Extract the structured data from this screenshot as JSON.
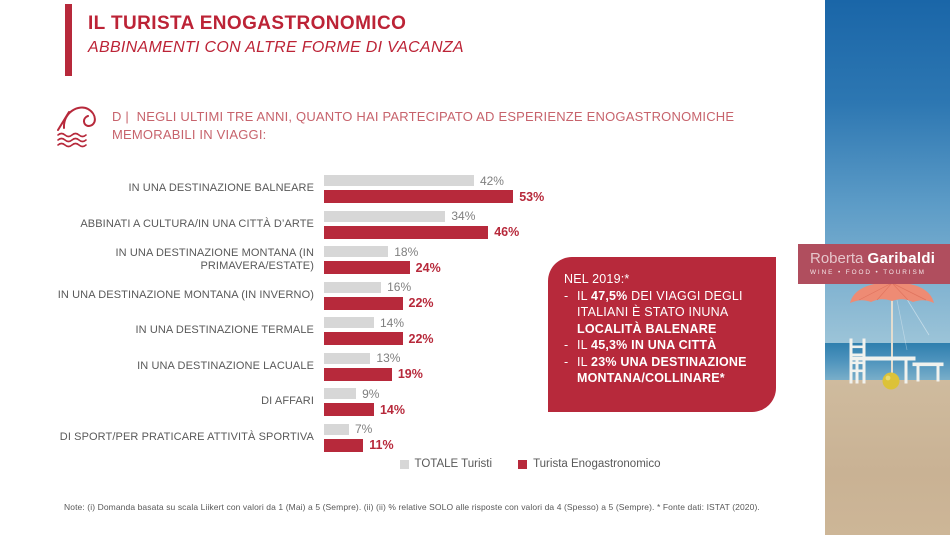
{
  "slide": {
    "title": "IL TURISTA ENOGASTRONOMICO",
    "subtitle": "ABBINAMENTI CON ALTRE FORME DI VACANZA",
    "question_prefix": "D |",
    "question": "NEGLI ULTIMI TRE ANNI, QUANTO HAI PARTECIPATO AD ESPERIENZE ENOGASTRONOMICHE MEMORABILI IN VIAGGI:",
    "footnote": "Note: (i) Domanda basata su scala Liikert con valori da 1 (Mai) a 5 (Sempre). (ii) (ii) % relative SOLO alle risposte con valori da 4 (Spesso) a 5 (Sempre). * Fonte dati: ISTAT (2020)."
  },
  "colors": {
    "accent_red": "#B7293B",
    "title_red": "#BC2336",
    "question_red": "#C7636C",
    "gray_bar": "#D7D7D7",
    "value_gray": "#7F7F7F",
    "label_gray": "#595959",
    "badge_rose": "#B04E5E"
  },
  "chart_data": {
    "type": "bar",
    "orientation": "horizontal",
    "title": "NEGLI ULTIMI TRE ANNI, QUANTO HAI PARTECIPATO AD ESPERIENZE ENOGASTRONOMICHE MEMORABILI IN VIAGGI",
    "unit": "%",
    "xlim": [
      0,
      60
    ],
    "grid": false,
    "legend_position": "bottom",
    "categories": [
      "IN UNA DESTINAZIONE BALNEARE",
      "ABBINATI A CULTURA/IN UNA CITTÀ D’ARTE",
      "IN UNA DESTINAZIONE MONTANA (IN PRIMAVERA/ESTATE)",
      "IN UNA DESTINAZIONE MONTANA (IN INVERNO)",
      "IN UNA DESTINAZIONE TERMALE",
      "IN UNA DESTINAZIONE LACUALE",
      "DI AFFARI",
      "DI SPORT/PER PRATICARE ATTIVITÀ SPORTIVA"
    ],
    "series": [
      {
        "name": "TOTALE Turisti",
        "color": "#D7D7D7",
        "values": [
          42,
          34,
          18,
          16,
          14,
          13,
          9,
          7
        ]
      },
      {
        "name": "Turista Enogastronomico",
        "color": "#B7293B",
        "values": [
          53,
          46,
          24,
          22,
          22,
          19,
          14,
          11
        ]
      }
    ]
  },
  "callout": {
    "heading": "NEL 2019:*",
    "bullets": [
      {
        "segments": [
          {
            "t": "IL ",
            "b": false
          },
          {
            "t": "47,5%",
            "b": true
          },
          {
            "t": " DEI VIAGGI DEGLI ITALIANI È STATO INUNA ",
            "b": false
          },
          {
            "t": "LOCALITÀ BALENARE",
            "b": true
          }
        ]
      },
      {
        "segments": [
          {
            "t": "IL ",
            "b": false
          },
          {
            "t": "45,3% IN UNA CITTÀ",
            "b": true
          }
        ]
      },
      {
        "segments": [
          {
            "t": "IL ",
            "b": false
          },
          {
            "t": "23% UNA DESTINAZIONE MONTANA/COLLINARE*",
            "b": true
          }
        ]
      }
    ]
  },
  "brand": {
    "name_light": "Roberta",
    "name_bold": "Garibaldi",
    "tagline": "WINE • FOOD • TOURISM"
  }
}
